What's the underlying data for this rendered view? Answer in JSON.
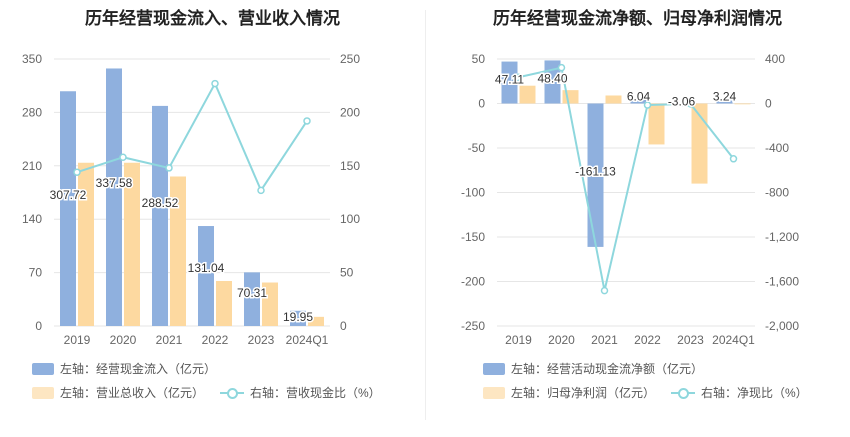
{
  "chart_data": [
    {
      "type": "bar+line",
      "title": "历年经营现金流入、营业收入情况",
      "categories": [
        "2019",
        "2020",
        "2021",
        "2022",
        "2023",
        "2024Q1"
      ],
      "left_axis": {
        "ylim": [
          0,
          350
        ],
        "ticks": [
          0,
          70,
          140,
          210,
          280,
          350
        ]
      },
      "right_axis": {
        "ylim": [
          0,
          250
        ],
        "ticks": [
          0,
          50,
          100,
          150,
          200,
          250
        ]
      },
      "series": [
        {
          "name": "左轴：经营现金流入（亿元）",
          "kind": "bar",
          "axis": "left",
          "color": "#8fb0de",
          "values": [
            307.72,
            337.58,
            288.52,
            131.04,
            70.31,
            19.95
          ],
          "labels": [
            "307.72",
            "337.58",
            "288.52",
            "131.04",
            "70.31",
            "19.95"
          ]
        },
        {
          "name": "左轴：营业总收入（亿元）",
          "kind": "bar",
          "axis": "left",
          "color": "#fdd9a0",
          "values": [
            214,
            214,
            196,
            59,
            57,
            12
          ]
        },
        {
          "name": "右轴：营收现金比（%）",
          "kind": "line",
          "axis": "right",
          "color": "#8ed7dd",
          "values": [
            144,
            158,
            148,
            227,
            127,
            192
          ]
        }
      ],
      "legend_rows": [
        [
          "左轴：经营现金流入（亿元）"
        ],
        [
          "左轴：营业总收入（亿元）",
          "右轴：营收现金比（%）"
        ]
      ]
    },
    {
      "type": "bar+line",
      "title": "历年经营现金流净额、归母净利润情况",
      "categories": [
        "2019",
        "2020",
        "2021",
        "2022",
        "2023",
        "2024Q1"
      ],
      "left_axis": {
        "ylim": [
          -250,
          50
        ],
        "ticks": [
          -250,
          -200,
          -150,
          -100,
          -50,
          0,
          50
        ]
      },
      "right_axis": {
        "ylim": [
          -2000,
          400
        ],
        "ticks": [
          -2000,
          -1600,
          -1200,
          -800,
          -400,
          0,
          400
        ],
        "tick_labels": [
          "-2,000",
          "-1,600",
          "-1,200",
          "-800",
          "-400",
          "0",
          "400"
        ]
      },
      "series": [
        {
          "name": "左轴：经营活动现金流净额（亿元）",
          "kind": "bar",
          "axis": "left",
          "color": "#8fb0de",
          "values": [
            47.11,
            48.4,
            -161.13,
            6.04,
            -3.06,
            3.24
          ],
          "labels": [
            "47.11",
            "48.40",
            "-161.13",
            "6.04",
            "-3.06",
            "3.24"
          ]
        },
        {
          "name": "左轴：归母净利润（亿元）",
          "kind": "bar",
          "axis": "left",
          "color": "#fdd9a0",
          "values": [
            20,
            15,
            9,
            -46,
            -90,
            0
          ]
        },
        {
          "name": "右轴：净现比（%）",
          "kind": "line",
          "axis": "right",
          "color": "#8ed7dd",
          "values": [
            236,
            322,
            -1682,
            -14,
            -3,
            -497
          ]
        }
      ],
      "legend_rows": [
        [
          "左轴：经营活动现金流净额（亿元）"
        ],
        [
          "左轴：归母净利润（亿元）",
          "右轴：净现比（%）"
        ]
      ]
    }
  ]
}
